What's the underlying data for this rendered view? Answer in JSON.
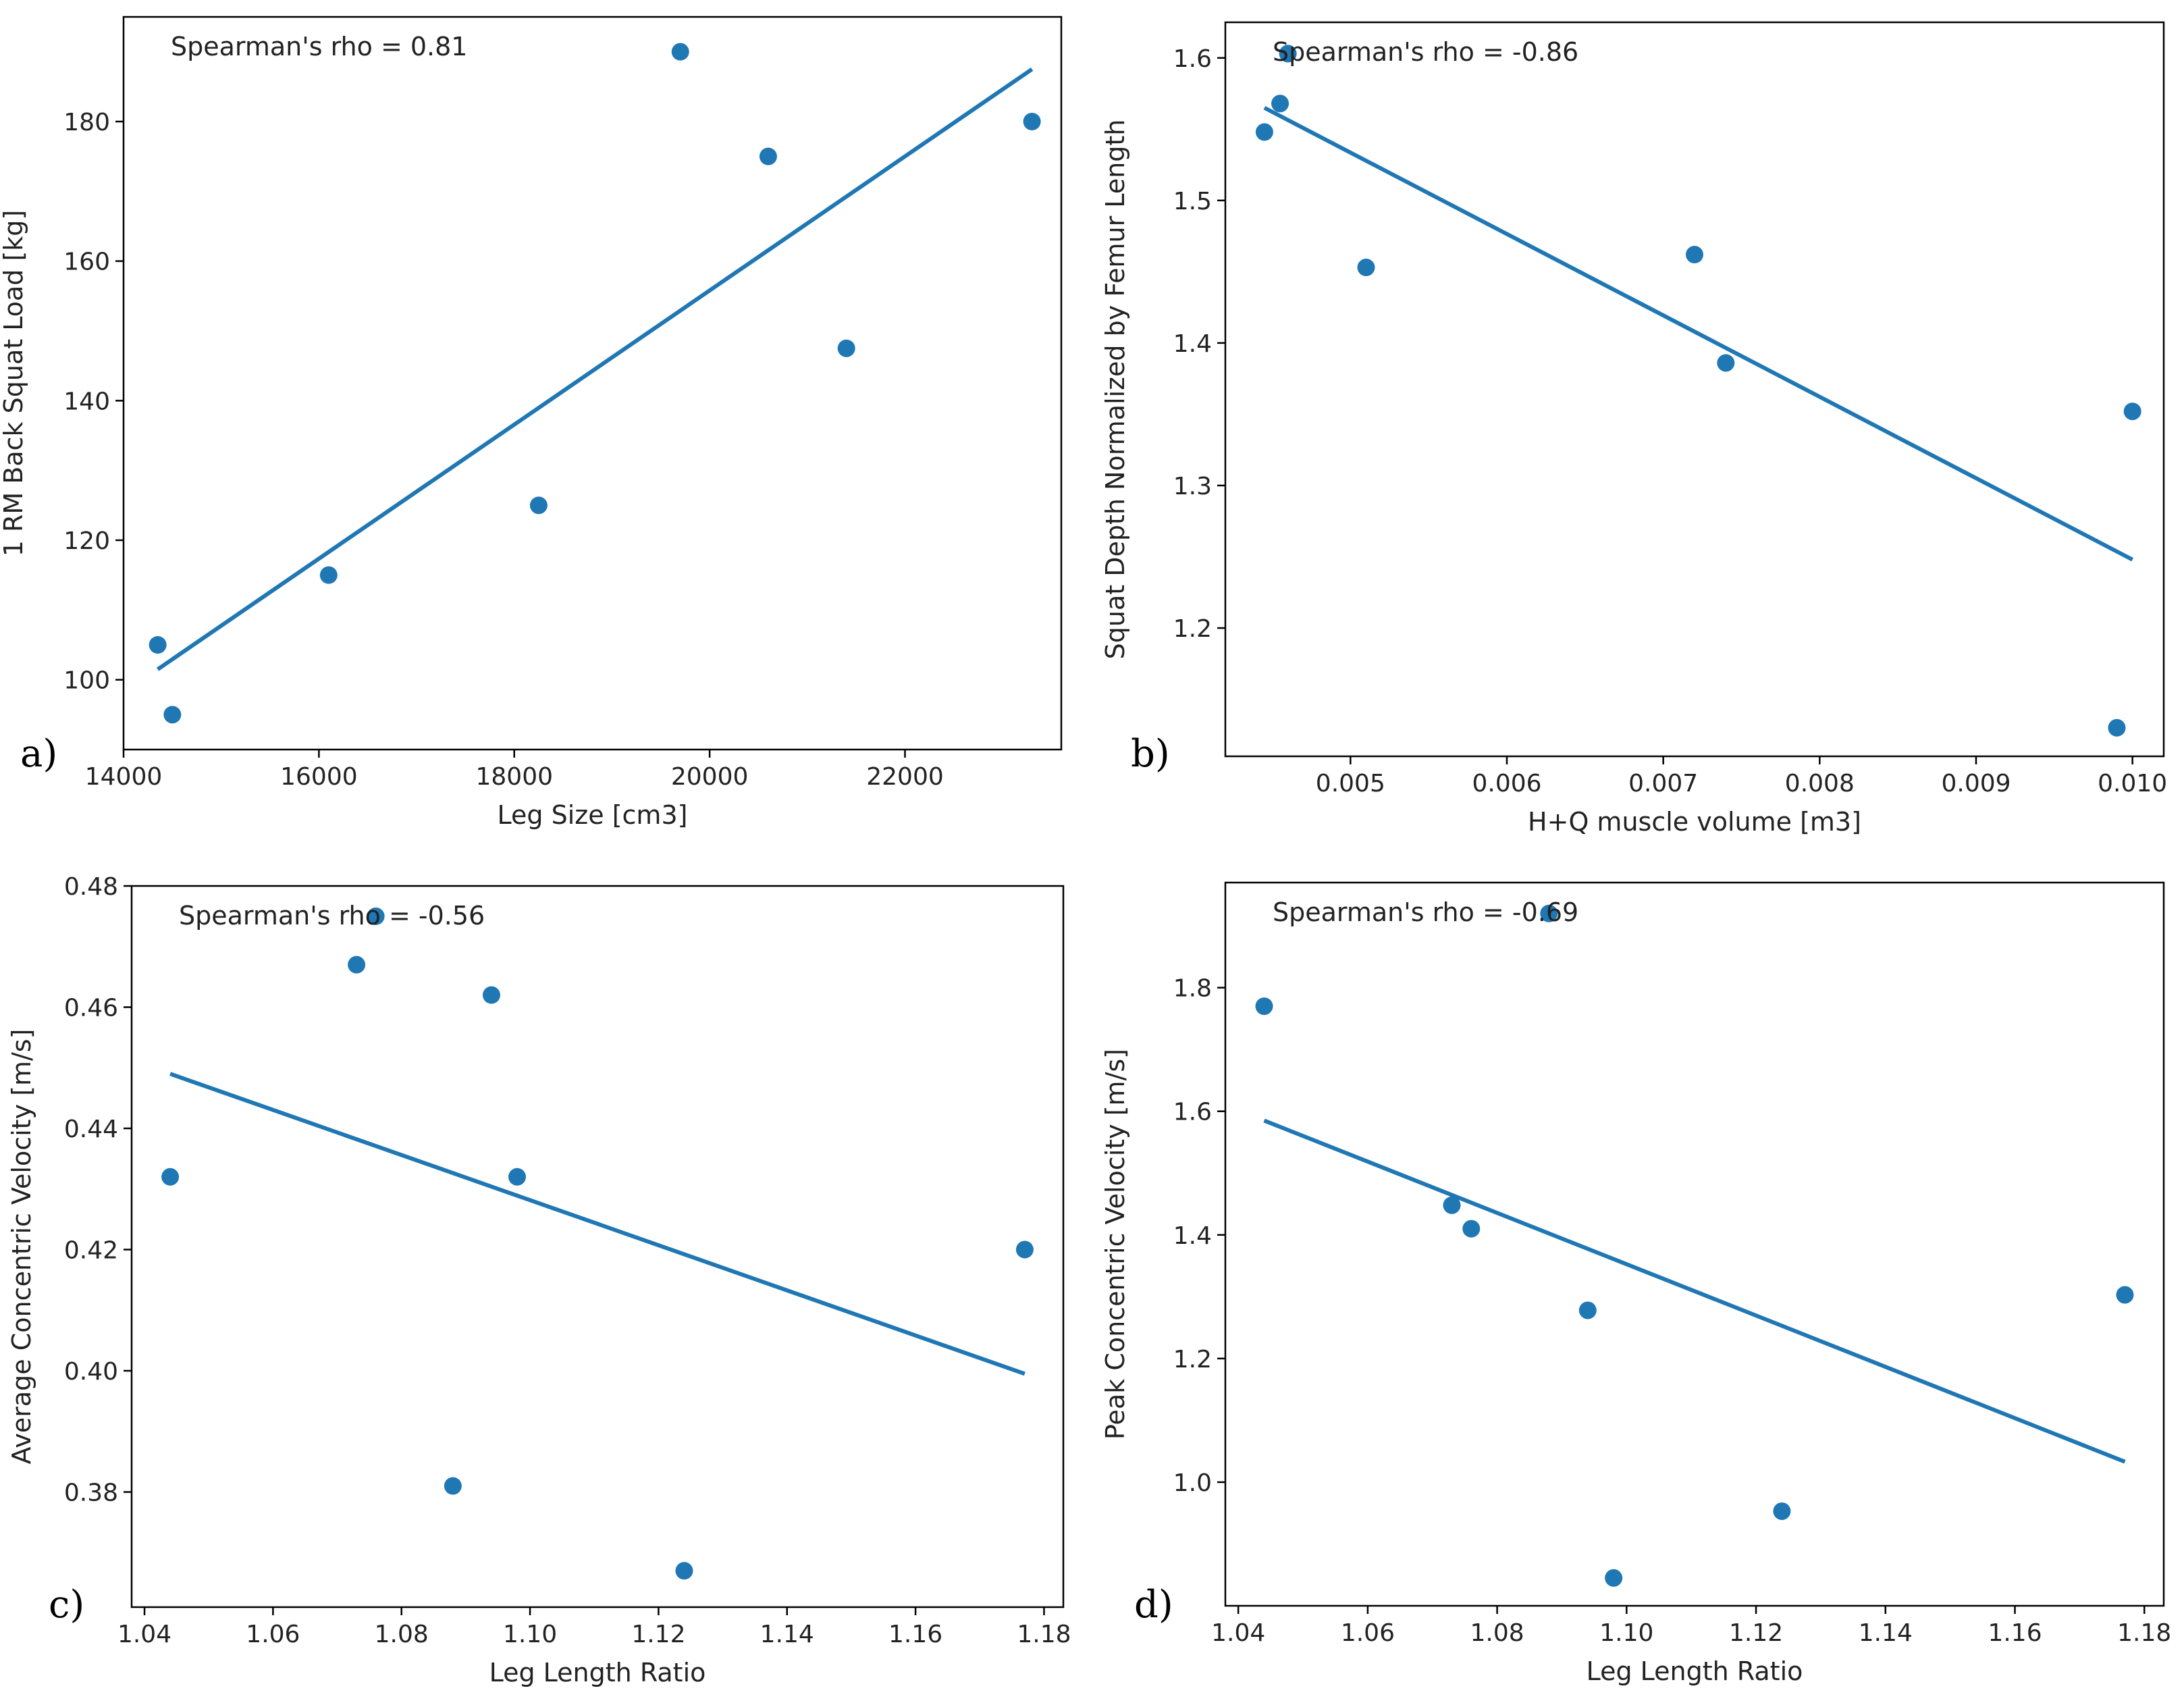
{
  "chart_data": [
    {
      "type": "scatter",
      "panel_label": "a)",
      "annotation": "Spearman's rho = 0.81",
      "xlabel": "Leg Size [cm3]",
      "ylabel": "1 RM Back Squat Load [kg]",
      "xlim": [
        14000,
        23600
      ],
      "ylim": [
        90,
        195
      ],
      "xticks": [
        14000,
        16000,
        18000,
        20000,
        22000
      ],
      "xtick_labels": [
        "14000",
        "16000",
        "18000",
        "20000",
        "22000"
      ],
      "yticks": [
        100,
        120,
        140,
        160,
        180
      ],
      "ytick_labels": [
        "100",
        "120",
        "140",
        "160",
        "180"
      ],
      "points": [
        [
          14350,
          105
        ],
        [
          14500,
          95
        ],
        [
          16100,
          115
        ],
        [
          18250,
          125
        ],
        [
          19700,
          190
        ],
        [
          20600,
          175
        ],
        [
          21400,
          147.5
        ],
        [
          23300,
          180
        ]
      ],
      "fit_line": [
        [
          14350,
          101.5
        ],
        [
          23300,
          187.5
        ]
      ]
    },
    {
      "type": "scatter",
      "panel_label": "b)",
      "annotation": "Spearman's rho = -0.86",
      "xlabel": "H+Q muscle volume [m3]",
      "ylabel": "Squat Depth Normalized by Femur Length",
      "xlim": [
        0.0042,
        0.0102
      ],
      "ylim": [
        1.11,
        1.625
      ],
      "xticks": [
        0.005,
        0.006,
        0.007,
        0.008,
        0.009,
        0.01
      ],
      "xtick_labels": [
        "0.005",
        "0.006",
        "0.007",
        "0.008",
        "0.009",
        "0.010"
      ],
      "yticks": [
        1.2,
        1.3,
        1.4,
        1.5,
        1.6
      ],
      "ytick_labels": [
        "1.2",
        "1.3",
        "1.4",
        "1.5",
        "1.6"
      ],
      "points": [
        [
          0.00445,
          1.548
        ],
        [
          0.00455,
          1.568
        ],
        [
          0.0046,
          1.603
        ],
        [
          0.0051,
          1.453
        ],
        [
          0.0072,
          1.462
        ],
        [
          0.0074,
          1.386
        ],
        [
          0.0099,
          1.13
        ],
        [
          0.01,
          1.352
        ]
      ],
      "fit_line": [
        [
          0.00445,
          1.565
        ],
        [
          0.01,
          1.248
        ]
      ]
    },
    {
      "type": "scatter",
      "panel_label": "c)",
      "annotation": "Spearman's rho = -0.56",
      "xlabel": "Leg Length Ratio",
      "ylabel": "Average Concentric Velocity [m/s]",
      "xlim": [
        1.038,
        1.183
      ],
      "ylim": [
        0.361,
        0.48
      ],
      "xticks": [
        1.04,
        1.06,
        1.08,
        1.1,
        1.12,
        1.14,
        1.16,
        1.18
      ],
      "xtick_labels": [
        "1.04",
        "1.06",
        "1.08",
        "1.10",
        "1.12",
        "1.14",
        "1.16",
        "1.18"
      ],
      "yticks": [
        0.38,
        0.4,
        0.42,
        0.44,
        0.46,
        0.48
      ],
      "ytick_labels": [
        "0.38",
        "0.40",
        "0.42",
        "0.44",
        "0.46",
        "0.48"
      ],
      "points": [
        [
          1.044,
          0.432
        ],
        [
          1.073,
          0.467
        ],
        [
          1.076,
          0.475
        ],
        [
          1.088,
          0.381
        ],
        [
          1.094,
          0.462
        ],
        [
          1.098,
          0.432
        ],
        [
          1.124,
          0.367
        ],
        [
          1.177,
          0.42
        ]
      ],
      "fit_line": [
        [
          1.044,
          0.449
        ],
        [
          1.177,
          0.3995
        ]
      ]
    },
    {
      "type": "scatter",
      "panel_label": "d)",
      "annotation": "Spearman's rho = -0.69",
      "xlabel": "Leg Length Ratio",
      "ylabel": "Peak Concentric Velocity [m/s]",
      "xlim": [
        1.038,
        1.183
      ],
      "ylim": [
        0.8,
        1.97
      ],
      "xticks": [
        1.04,
        1.06,
        1.08,
        1.1,
        1.12,
        1.14,
        1.16,
        1.18
      ],
      "xtick_labels": [
        "1.04",
        "1.06",
        "1.08",
        "1.10",
        "1.12",
        "1.14",
        "1.16",
        "1.18"
      ],
      "yticks": [
        1.0,
        1.2,
        1.4,
        1.6,
        1.8
      ],
      "ytick_labels": [
        "1.0",
        "1.2",
        "1.4",
        "1.6",
        "1.8"
      ],
      "points": [
        [
          1.044,
          1.77
        ],
        [
          1.073,
          1.448
        ],
        [
          1.076,
          1.41
        ],
        [
          1.088,
          1.92
        ],
        [
          1.094,
          1.278
        ],
        [
          1.098,
          0.845
        ],
        [
          1.124,
          0.953
        ],
        [
          1.177,
          1.303
        ]
      ],
      "fit_line": [
        [
          1.044,
          1.585
        ],
        [
          1.177,
          1.033
        ]
      ]
    }
  ]
}
